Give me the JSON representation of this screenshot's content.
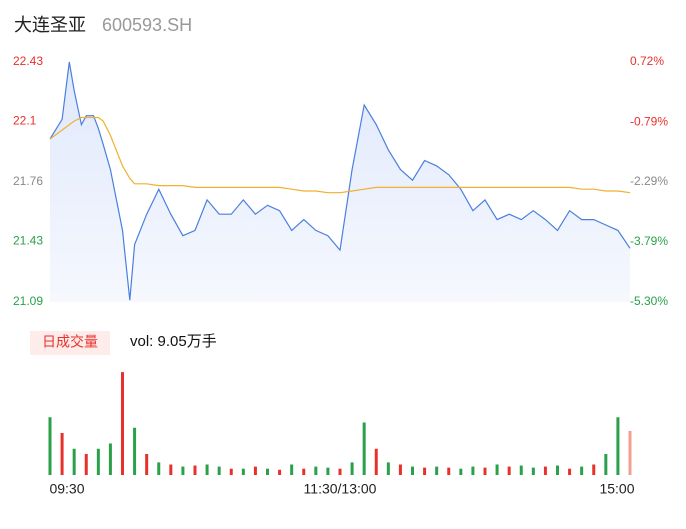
{
  "header": {
    "title": "大连圣亚",
    "code": "600593.SH"
  },
  "volume_tab": {
    "label": "日成交量",
    "summary": "vol: 9.05万手"
  },
  "chart_data": [
    {
      "type": "line",
      "x": [
        0,
        5,
        8,
        10,
        13,
        15,
        18,
        20,
        22,
        25,
        30,
        33,
        35,
        40,
        45,
        50,
        55,
        60,
        65,
        70,
        75,
        80,
        85,
        90,
        95,
        100,
        105,
        110,
        115,
        120,
        125,
        130,
        135,
        140,
        145,
        150,
        155,
        160,
        165,
        170,
        175,
        180,
        185,
        190,
        195,
        200,
        205,
        210,
        215,
        220,
        225,
        230,
        235,
        240
      ],
      "series": [
        {
          "name": "price",
          "color": "#4a7fe0",
          "values": [
            22.0,
            22.11,
            22.43,
            22.27,
            22.08,
            22.13,
            22.13,
            22.06,
            21.97,
            21.83,
            21.49,
            21.1,
            21.41,
            21.58,
            21.72,
            21.58,
            21.46,
            21.49,
            21.66,
            21.58,
            21.58,
            21.66,
            21.58,
            21.63,
            21.6,
            21.49,
            21.55,
            21.49,
            21.46,
            21.38,
            21.83,
            22.19,
            22.08,
            21.94,
            21.83,
            21.77,
            21.88,
            21.85,
            21.8,
            21.72,
            21.6,
            21.66,
            21.55,
            21.58,
            21.55,
            21.6,
            21.55,
            21.49,
            21.6,
            21.55,
            21.55,
            21.52,
            21.49,
            21.39
          ]
        },
        {
          "name": "average",
          "color": "#f0b030",
          "values": [
            22.0,
            22.05,
            22.08,
            22.1,
            22.12,
            22.12,
            22.12,
            22.12,
            22.1,
            22.02,
            21.85,
            21.78,
            21.75,
            21.75,
            21.74,
            21.74,
            21.74,
            21.73,
            21.73,
            21.73,
            21.73,
            21.73,
            21.73,
            21.73,
            21.73,
            21.72,
            21.71,
            21.71,
            21.7,
            21.7,
            21.71,
            21.72,
            21.73,
            21.73,
            21.73,
            21.73,
            21.73,
            21.73,
            21.73,
            21.73,
            21.73,
            21.73,
            21.73,
            21.73,
            21.73,
            21.73,
            21.73,
            21.73,
            21.73,
            21.72,
            21.72,
            21.71,
            21.71,
            21.7
          ]
        }
      ],
      "xlim": [
        0,
        240
      ],
      "ylim": [
        21.09,
        22.43
      ],
      "yticks": [
        21.09,
        21.43,
        21.76,
        22.1,
        22.43
      ],
      "y2lim": [
        -5.3,
        0.72
      ],
      "y2ticks": [
        {
          "value": -5.3,
          "label": "-5.30%"
        },
        {
          "value": -3.79,
          "label": "-3.79%"
        },
        {
          "value": -2.29,
          "label": "-2.29%"
        },
        {
          "value": -0.79,
          "label": "-0.79%"
        },
        {
          "value": 0.72,
          "label": "0.72%"
        }
      ],
      "up_color": "#e8302b",
      "down_color": "#2aa04a",
      "flat_color": "#888888"
    },
    {
      "type": "bar",
      "x": [
        0,
        5,
        10,
        15,
        20,
        25,
        30,
        35,
        40,
        45,
        50,
        55,
        60,
        65,
        70,
        75,
        80,
        85,
        90,
        95,
        100,
        105,
        110,
        115,
        120,
        125,
        130,
        135,
        140,
        145,
        150,
        155,
        160,
        165,
        170,
        175,
        180,
        185,
        190,
        195,
        200,
        205,
        210,
        215,
        220,
        225,
        230,
        235,
        240
      ],
      "values": [
        55,
        40,
        25,
        20,
        25,
        30,
        98,
        45,
        20,
        12,
        10,
        8,
        9,
        10,
        8,
        6,
        6,
        8,
        6,
        5,
        10,
        6,
        8,
        7,
        6,
        12,
        50,
        25,
        12,
        10,
        8,
        7,
        8,
        7,
        6,
        8,
        7,
        10,
        8,
        9,
        7,
        8,
        9,
        6,
        8,
        10,
        20,
        55,
        42
      ],
      "colors": [
        "#2aa04a",
        "#e8302b",
        "#2aa04a",
        "#e8302b",
        "#2aa04a",
        "#2aa04a",
        "#e8302b",
        "#2aa04a",
        "#e8302b",
        "#2aa04a",
        "#e8302b",
        "#2aa04a",
        "#e8302b",
        "#2aa04a",
        "#2aa04a",
        "#e8302b",
        "#2aa04a",
        "#e8302b",
        "#2aa04a",
        "#e8302b",
        "#2aa04a",
        "#e8302b",
        "#2aa04a",
        "#2aa04a",
        "#e8302b",
        "#2aa04a",
        "#2aa04a",
        "#e8302b",
        "#2aa04a",
        "#e8302b",
        "#2aa04a",
        "#e8302b",
        "#2aa04a",
        "#e8302b",
        "#2aa04a",
        "#2aa04a",
        "#e8302b",
        "#2aa04a",
        "#e8302b",
        "#2aa04a",
        "#2aa04a",
        "#e8302b",
        "#2aa04a",
        "#e8302b",
        "#2aa04a",
        "#e8302b",
        "#2aa04a",
        "#2aa04a",
        "#f0a090"
      ],
      "xlim": [
        0,
        240
      ],
      "ylim": [
        0,
        100
      ],
      "xticks": [
        {
          "value": 0,
          "label": "09:30"
        },
        {
          "value": 120,
          "label": "11:30/13:00"
        },
        {
          "value": 240,
          "label": "15:00"
        }
      ]
    }
  ]
}
